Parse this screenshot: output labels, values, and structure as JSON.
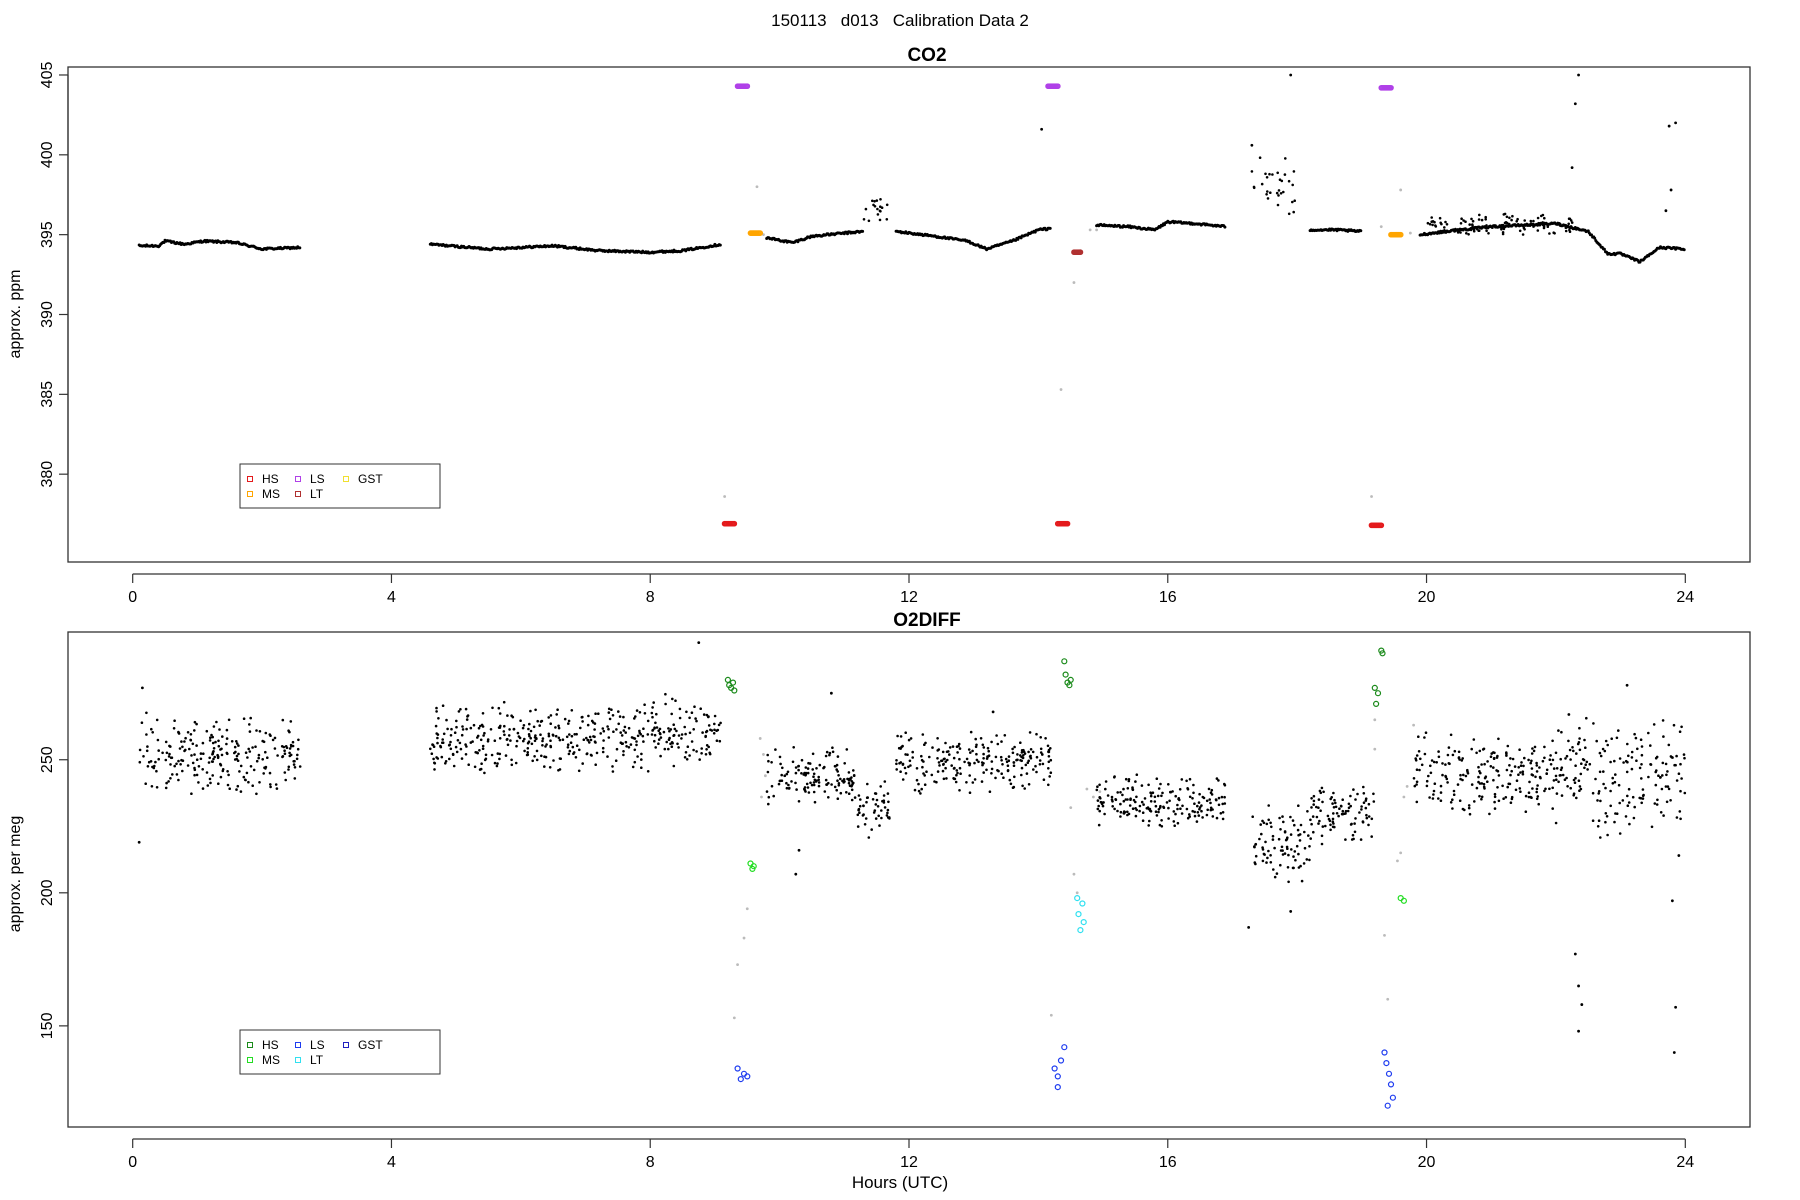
{
  "figure": {
    "suptitle": "150113   d013   Calibration Data 2",
    "xlabel": "Hours (UTC)"
  },
  "chart_data": [
    {
      "type": "scatter",
      "title": "CO2",
      "xlabel": "",
      "ylabel": "approx. ppm",
      "xlim": [
        -1,
        25
      ],
      "ylim": [
        374.5,
        405.5
      ],
      "xticks": [
        0,
        4,
        8,
        12,
        16,
        20,
        24
      ],
      "yticks": [
        380,
        385,
        390,
        395,
        400,
        405
      ],
      "grid": false,
      "legend": {
        "placement": "bottom-left",
        "entries": [
          {
            "label": "HS",
            "color": "#e41a1c"
          },
          {
            "label": "LS",
            "color": "#b040e8"
          },
          {
            "label": "GST",
            "color": "#f0e030"
          },
          {
            "label": "MS",
            "color": "#ffa500"
          },
          {
            "label": "LT",
            "color": "#b03030"
          }
        ]
      },
      "baseline": {
        "color": "#000000",
        "segments": [
          {
            "x": [
              0.1,
              0.4,
              0.5,
              0.8,
              1.1,
              1.6,
              2.0,
              2.6
            ],
            "y": [
              394.3,
              394.3,
              394.6,
              394.4,
              394.6,
              394.5,
              394.1,
              394.2
            ]
          },
          {
            "x": [
              4.6,
              5.5,
              6.5,
              7.2,
              8.0,
              8.5,
              9.1
            ],
            "y": [
              394.4,
              394.1,
              394.3,
              394.0,
              393.9,
              394.0,
              394.4
            ]
          },
          {
            "x": [
              9.8,
              10.2,
              10.5,
              11.0,
              11.3
            ],
            "y": [
              394.8,
              394.5,
              394.9,
              395.1,
              395.2
            ]
          },
          {
            "x": [
              11.8,
              12.4,
              12.9,
              13.2,
              13.6,
              14.0,
              14.2
            ],
            "y": [
              395.2,
              394.9,
              394.6,
              394.1,
              394.6,
              395.3,
              395.4
            ]
          },
          {
            "x": [
              14.9,
              15.4,
              15.8,
              16.0,
              16.4,
              16.9
            ],
            "y": [
              395.6,
              395.5,
              395.3,
              395.8,
              395.7,
              395.5
            ]
          },
          {
            "x": [
              18.2,
              18.6,
              19.0
            ],
            "y": [
              395.3,
              395.3,
              395.2
            ]
          },
          {
            "x": [
              19.9,
              20.5,
              21.0,
              21.5,
              22.0,
              22.5,
              22.8,
              23.0,
              23.3,
              23.6,
              24.0
            ],
            "y": [
              395.0,
              395.3,
              395.5,
              395.6,
              395.7,
              395.2,
              393.8,
              393.8,
              393.3,
              394.2,
              394.1
            ]
          }
        ],
        "scatter_clusters": [
          {
            "x": [
              11.3,
              11.7
            ],
            "y_range": [
              395.6,
              397.9
            ]
          },
          {
            "x": [
              17.3,
              18.0
            ],
            "y_range": [
              396.0,
              400.0
            ]
          },
          {
            "x": [
              20.0,
              22.3
            ],
            "y_range": [
              394.8,
              396.4
            ]
          }
        ],
        "outliers": [
          {
            "x": 17.3,
            "y": 400.6
          },
          {
            "x": 17.9,
            "y": 405.0
          },
          {
            "x": 22.35,
            "y": 405.0
          },
          {
            "x": 22.3,
            "y": 403.2
          },
          {
            "x": 22.25,
            "y": 399.2
          },
          {
            "x": 23.75,
            "y": 401.8
          },
          {
            "x": 23.85,
            "y": 402.0
          },
          {
            "x": 23.78,
            "y": 397.8
          },
          {
            "x": 23.7,
            "y": 396.5
          },
          {
            "x": 14.05,
            "y": 401.6
          }
        ]
      },
      "flush_points": {
        "color": "#bbbbbb",
        "points": [
          {
            "x": 9.15,
            "y": 378.6
          },
          {
            "x": 9.65,
            "y": 398.0
          },
          {
            "x": 9.75,
            "y": 395.0
          },
          {
            "x": 14.35,
            "y": 385.3
          },
          {
            "x": 14.55,
            "y": 392.0
          },
          {
            "x": 14.65,
            "y": 394.0
          },
          {
            "x": 14.8,
            "y": 395.3
          },
          {
            "x": 14.9,
            "y": 395.3
          },
          {
            "x": 19.15,
            "y": 378.6
          },
          {
            "x": 19.3,
            "y": 395.5
          },
          {
            "x": 19.6,
            "y": 397.8
          },
          {
            "x": 19.75,
            "y": 395.1
          }
        ]
      },
      "series": [
        {
          "name": "HS",
          "color": "#e41a1c",
          "x_range": [
            9.15,
            9.3
          ],
          "y": 376.9
        },
        {
          "name": "HS",
          "color": "#e41a1c",
          "x_range": [
            14.3,
            14.45
          ],
          "y": 376.9
        },
        {
          "name": "HS",
          "color": "#e41a1c",
          "x_range": [
            19.15,
            19.3
          ],
          "y": 376.8
        },
        {
          "name": "LS",
          "color": "#b040e8",
          "x_range": [
            9.35,
            9.5
          ],
          "y": 404.3
        },
        {
          "name": "LS",
          "color": "#b040e8",
          "x_range": [
            14.15,
            14.3
          ],
          "y": 404.3
        },
        {
          "name": "LS",
          "color": "#b040e8",
          "x_range": [
            19.3,
            19.45
          ],
          "y": 404.2
        },
        {
          "name": "MS",
          "color": "#ffa500",
          "x_range": [
            9.55,
            9.7
          ],
          "y": 395.1
        },
        {
          "name": "MS",
          "color": "#ffa500",
          "x_range": [
            19.45,
            19.6
          ],
          "y": 395.0
        },
        {
          "name": "LT",
          "color": "#b03030",
          "x_range": [
            14.55,
            14.65
          ],
          "y": 393.9
        }
      ]
    },
    {
      "type": "scatter",
      "title": "O2DIFF",
      "xlabel": "Hours (UTC)",
      "ylabel": "approx. per meg",
      "xlim": [
        -1,
        25
      ],
      "ylim": [
        112,
        298
      ],
      "xticks": [
        0,
        4,
        8,
        12,
        16,
        20,
        24
      ],
      "yticks": [
        150,
        200,
        250
      ],
      "grid": false,
      "legend": {
        "placement": "bottom-left",
        "entries": [
          {
            "label": "HS",
            "color": "#1a8a1a"
          },
          {
            "label": "LS",
            "color": "#1e3cf0"
          },
          {
            "label": "GST",
            "color": "#2020c0"
          },
          {
            "label": "MS",
            "color": "#22dd22"
          },
          {
            "label": "LT",
            "color": "#30e0f0"
          }
        ]
      },
      "baseline": {
        "color": "#000000",
        "scatter_clusters": [
          {
            "x": [
              0.1,
              2.6
            ],
            "y_range": [
              236,
              268
            ]
          },
          {
            "x": [
              4.6,
              8.0
            ],
            "y_range": [
              244,
              272
            ]
          },
          {
            "x": [
              8.0,
              9.1
            ],
            "y_range": [
              246,
              276
            ]
          },
          {
            "x": [
              9.8,
              11.2
            ],
            "y_range": [
              232,
              256
            ]
          },
          {
            "x": [
              11.2,
              11.7
            ],
            "y_range": [
              220,
              242
            ]
          },
          {
            "x": [
              11.8,
              14.2
            ],
            "y_range": [
              236,
              262
            ]
          },
          {
            "x": [
              14.9,
              16.9
            ],
            "y_range": [
              224,
              245
            ]
          },
          {
            "x": [
              17.3,
              18.2
            ],
            "y_range": [
              200,
              235
            ]
          },
          {
            "x": [
              18.2,
              19.2
            ],
            "y_range": [
              218,
              242
            ]
          },
          {
            "x": [
              19.8,
              22.0
            ],
            "y_range": [
              228,
              262
            ]
          },
          {
            "x": [
              22.0,
              24.0
            ],
            "y_range": [
              220,
              268
            ]
          }
        ],
        "outliers": [
          {
            "x": 0.1,
            "y": 219
          },
          {
            "x": 0.15,
            "y": 277
          },
          {
            "x": 8.75,
            "y": 294
          },
          {
            "x": 10.3,
            "y": 216
          },
          {
            "x": 10.25,
            "y": 207
          },
          {
            "x": 10.8,
            "y": 275
          },
          {
            "x": 13.3,
            "y": 268
          },
          {
            "x": 17.25,
            "y": 187
          },
          {
            "x": 17.9,
            "y": 193
          },
          {
            "x": 22.3,
            "y": 177
          },
          {
            "x": 22.35,
            "y": 165
          },
          {
            "x": 22.4,
            "y": 158
          },
          {
            "x": 22.35,
            "y": 148
          },
          {
            "x": 23.8,
            "y": 197
          },
          {
            "x": 23.85,
            "y": 157
          },
          {
            "x": 23.83,
            "y": 140
          },
          {
            "x": 23.9,
            "y": 214
          },
          {
            "x": 23.1,
            "y": 278
          },
          {
            "x": 22.2,
            "y": 267
          }
        ]
      },
      "flush_points": {
        "color": "#bbbbbb",
        "points": [
          {
            "x": 9.3,
            "y": 153
          },
          {
            "x": 9.35,
            "y": 173
          },
          {
            "x": 9.45,
            "y": 183
          },
          {
            "x": 9.5,
            "y": 194
          },
          {
            "x": 9.7,
            "y": 258
          },
          {
            "x": 9.75,
            "y": 252
          },
          {
            "x": 9.72,
            "y": 236
          },
          {
            "x": 9.78,
            "y": 244
          },
          {
            "x": 14.2,
            "y": 154
          },
          {
            "x": 14.5,
            "y": 232
          },
          {
            "x": 14.55,
            "y": 207
          },
          {
            "x": 14.6,
            "y": 200
          },
          {
            "x": 14.75,
            "y": 239
          },
          {
            "x": 14.85,
            "y": 236
          },
          {
            "x": 14.95,
            "y": 238
          },
          {
            "x": 19.2,
            "y": 265
          },
          {
            "x": 19.2,
            "y": 254
          },
          {
            "x": 19.35,
            "y": 184
          },
          {
            "x": 19.4,
            "y": 160
          },
          {
            "x": 19.55,
            "y": 212
          },
          {
            "x": 19.6,
            "y": 215
          },
          {
            "x": 19.65,
            "y": 236
          },
          {
            "x": 19.7,
            "y": 240
          },
          {
            "x": 19.8,
            "y": 263
          }
        ]
      },
      "series": [
        {
          "name": "HS",
          "color": "#1a8a1a",
          "points": [
            [
              9.2,
              280
            ],
            [
              9.22,
              278
            ],
            [
              9.25,
              277
            ],
            [
              9.28,
              279
            ],
            [
              9.3,
              276
            ]
          ]
        },
        {
          "name": "HS",
          "color": "#1a8a1a",
          "points": [
            [
              14.4,
              287
            ],
            [
              14.42,
              282
            ],
            [
              14.45,
              279
            ],
            [
              14.48,
              278
            ],
            [
              14.5,
              280
            ]
          ]
        },
        {
          "name": "HS",
          "color": "#1a8a1a",
          "points": [
            [
              19.2,
              277
            ],
            [
              19.22,
              271
            ],
            [
              19.25,
              275
            ],
            [
              19.3,
              291
            ],
            [
              19.32,
              290
            ]
          ]
        },
        {
          "name": "MS",
          "color": "#22dd22",
          "points": [
            [
              9.55,
              211
            ],
            [
              9.58,
              209
            ],
            [
              9.6,
              210
            ],
            [
              19.6,
              198
            ],
            [
              19.65,
              197
            ]
          ]
        },
        {
          "name": "LS",
          "color": "#1e3cf0",
          "points": [
            [
              9.35,
              134
            ],
            [
              9.4,
              130
            ],
            [
              9.45,
              132
            ],
            [
              9.5,
              131
            ],
            [
              14.25,
              134
            ],
            [
              14.3,
              131
            ],
            [
              14.35,
              137
            ],
            [
              14.4,
              142
            ],
            [
              14.3,
              127
            ]
          ]
        },
        {
          "name": "LS",
          "color": "#1e3cf0",
          "points": [
            [
              19.35,
              140
            ],
            [
              19.38,
              136
            ],
            [
              19.42,
              132
            ],
            [
              19.45,
              128
            ],
            [
              19.48,
              123
            ],
            [
              19.4,
              120
            ]
          ]
        },
        {
          "name": "LT",
          "color": "#30e0f0",
          "points": [
            [
              14.6,
              198
            ],
            [
              14.62,
              192
            ],
            [
              14.65,
              186
            ],
            [
              14.7,
              189
            ],
            [
              14.68,
              196
            ]
          ]
        }
      ]
    }
  ]
}
